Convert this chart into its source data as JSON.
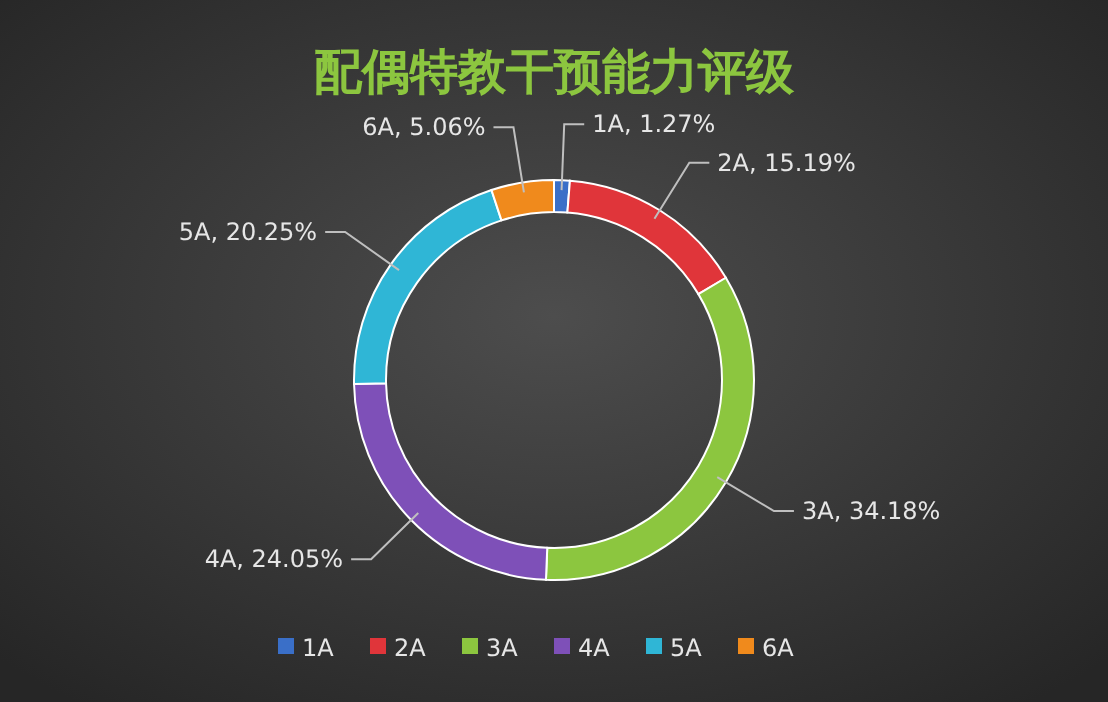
{
  "chart_data": {
    "type": "donut",
    "title": "配偶特教干预能力评级",
    "categories": [
      "1A",
      "2A",
      "3A",
      "4A",
      "5A",
      "6A"
    ],
    "values": [
      1.27,
      15.19,
      34.18,
      24.05,
      20.25,
      5.06
    ],
    "value_labels": [
      "1A, 1.27%",
      "2A, 15.19%",
      "3A, 34.18%",
      "4A, 24.05%",
      "5A, 20.25%",
      "6A, 5.06%"
    ],
    "colors": [
      "#3a6fc8",
      "#e0353a",
      "#8cc63f",
      "#7e50b8",
      "#2fb6d6",
      "#f08a1c"
    ],
    "legend": "bottom"
  }
}
